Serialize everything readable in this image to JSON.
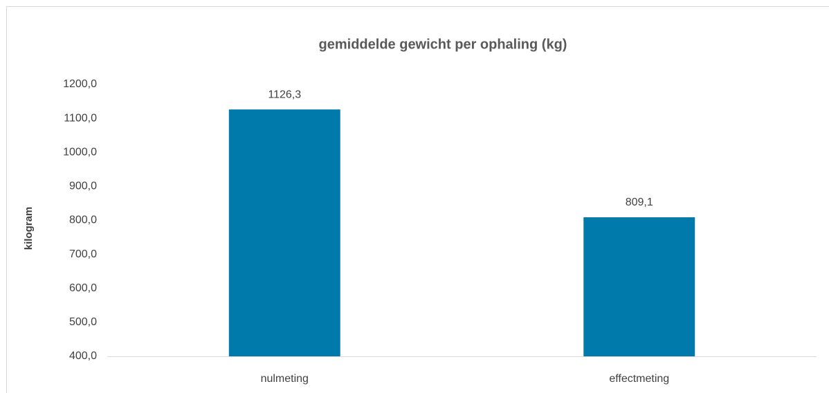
{
  "chart_data": {
    "type": "bar",
    "title": "gemiddelde gewicht per ophaling (kg)",
    "y_label": "kilogram",
    "categories": [
      "nulmeting",
      "effectmeting"
    ],
    "values": [
      1126.3,
      809.1
    ],
    "value_labels": [
      "1126,3",
      "809,1"
    ],
    "color": "#007aab",
    "ylim": [
      400,
      1200
    ],
    "yticks": [
      {
        "value": 400,
        "label": "400,0"
      },
      {
        "value": 500,
        "label": "500,0"
      },
      {
        "value": 600,
        "label": "600,0"
      },
      {
        "value": 700,
        "label": "700,0"
      },
      {
        "value": 800,
        "label": "800,0"
      },
      {
        "value": 900,
        "label": "900,0"
      },
      {
        "value": 1000,
        "label": "1000,0"
      },
      {
        "value": 1100,
        "label": "1100,0"
      },
      {
        "value": 1200,
        "label": "1200,0"
      }
    ],
    "grid": false
  }
}
